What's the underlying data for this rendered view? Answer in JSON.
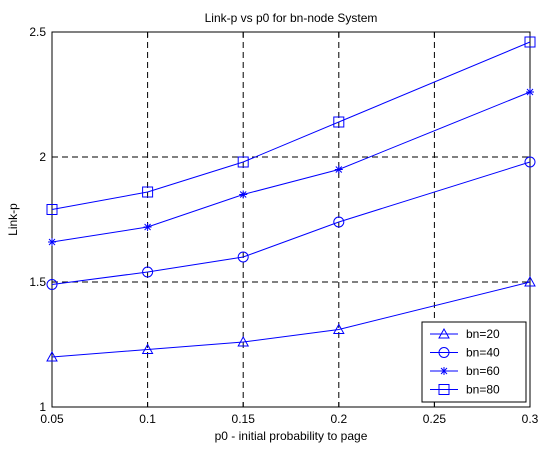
{
  "chart_data": {
    "type": "line",
    "title": "Link-p vs p0 for bn-node System",
    "xlabel": "p0 - initial probability to page",
    "ylabel": "Link-p",
    "xlim": [
      0.05,
      0.3
    ],
    "ylim": [
      1,
      2.5
    ],
    "x_ticks": [
      "0.05",
      "0.1",
      "0.15",
      "0.2",
      "0.25",
      "0.3"
    ],
    "y_ticks": [
      "1",
      "1.5",
      "2",
      "2.5"
    ],
    "x": [
      0.05,
      0.1,
      0.15,
      0.2,
      0.3
    ],
    "grid": true,
    "grid_style": "dashed",
    "legend_position": "bottom-right",
    "line_color": "#0000ff",
    "series": [
      {
        "name": "bn=20",
        "marker": "triangle",
        "values": [
          1.2,
          1.23,
          1.26,
          1.31,
          1.5
        ]
      },
      {
        "name": "bn=40",
        "marker": "circle",
        "values": [
          1.49,
          1.54,
          1.6,
          1.74,
          1.98
        ]
      },
      {
        "name": "bn=60",
        "marker": "star",
        "values": [
          1.66,
          1.72,
          1.85,
          1.95,
          2.26
        ]
      },
      {
        "name": "bn=80",
        "marker": "square",
        "values": [
          1.79,
          1.86,
          1.98,
          2.14,
          2.46
        ]
      }
    ]
  }
}
